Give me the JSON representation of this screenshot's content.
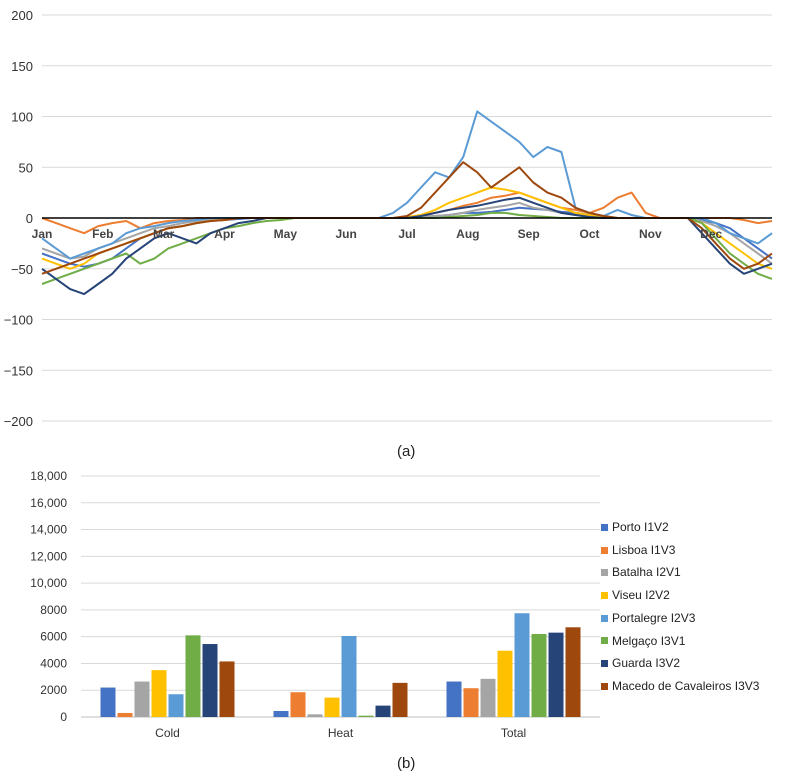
{
  "captions": {
    "a": "(a)",
    "b": "(b)"
  },
  "chart_data": [
    {
      "type": "line",
      "title": "",
      "xlabel": "",
      "ylabel": "",
      "ylim": [
        -200,
        200
      ],
      "yticks": [
        200,
        150,
        100,
        50,
        0,
        -50,
        -100,
        -150,
        -200
      ],
      "ytick_labels": [
        "200",
        "150",
        "100",
        "50",
        "0",
        "−50",
        "−100",
        "−150",
        "−200"
      ],
      "month_labels": [
        "Jan",
        "Feb",
        "Mar",
        "Apr",
        "May",
        "Jun",
        "Jul",
        "Aug",
        "Sep",
        "Oct",
        "Nov",
        "Dec"
      ],
      "grid": true,
      "series": [
        {
          "color": "#4472C4",
          "values": [
            -35,
            -40,
            -45,
            -48,
            -45,
            -40,
            -30,
            -20,
            -15,
            -10,
            -8,
            -5,
            -3,
            -2,
            -1,
            0,
            0,
            0,
            0,
            0,
            0,
            0,
            0,
            0,
            0,
            0,
            0,
            1,
            2,
            3,
            5,
            5,
            6,
            8,
            10,
            9,
            8,
            6,
            5,
            3,
            2,
            0,
            0,
            0,
            0,
            0,
            0,
            -2,
            -5,
            -10,
            -20,
            -30,
            -40
          ]
        },
        {
          "color": "#ED7D31",
          "values": [
            0,
            -5,
            -10,
            -15,
            -8,
            -5,
            -3,
            -10,
            -5,
            -3,
            -2,
            0,
            0,
            0,
            0,
            0,
            0,
            0,
            0,
            0,
            0,
            0,
            0,
            0,
            0,
            0,
            0,
            2,
            5,
            8,
            12,
            15,
            20,
            22,
            25,
            20,
            15,
            10,
            8,
            5,
            10,
            20,
            25,
            5,
            0,
            0,
            0,
            0,
            0,
            0,
            -2,
            -5,
            -3
          ]
        },
        {
          "color": "#A5A5A5",
          "values": [
            -30,
            -35,
            -40,
            -38,
            -30,
            -25,
            -20,
            -15,
            -10,
            -8,
            -5,
            -3,
            -2,
            -1,
            0,
            0,
            0,
            0,
            0,
            0,
            0,
            0,
            0,
            0,
            0,
            0,
            0,
            1,
            2,
            3,
            5,
            8,
            10,
            12,
            15,
            10,
            8,
            5,
            3,
            2,
            0,
            0,
            0,
            0,
            0,
            0,
            0,
            -3,
            -8,
            -15,
            -25,
            -35,
            -45
          ]
        },
        {
          "color": "#FFC000",
          "values": [
            -40,
            -45,
            -50,
            -45,
            -35,
            -30,
            -25,
            -20,
            -15,
            -10,
            -8,
            -5,
            -3,
            -2,
            0,
            0,
            0,
            0,
            0,
            0,
            0,
            0,
            0,
            0,
            0,
            0,
            1,
            3,
            8,
            15,
            20,
            25,
            30,
            28,
            25,
            20,
            15,
            10,
            5,
            3,
            1,
            0,
            0,
            0,
            0,
            0,
            0,
            -5,
            -15,
            -25,
            -35,
            -45,
            -50
          ]
        },
        {
          "color": "#5B9BD5",
          "values": [
            -20,
            -30,
            -40,
            -35,
            -30,
            -25,
            -15,
            -10,
            -8,
            -5,
            -3,
            -2,
            0,
            0,
            0,
            0,
            0,
            0,
            0,
            0,
            0,
            0,
            0,
            0,
            0,
            5,
            15,
            30,
            45,
            40,
            60,
            105,
            95,
            85,
            75,
            60,
            70,
            65,
            10,
            5,
            2,
            8,
            3,
            0,
            0,
            0,
            0,
            0,
            -5,
            -15,
            -20,
            -25,
            -15
          ]
        },
        {
          "color": "#70AD47",
          "values": [
            -65,
            -60,
            -55,
            -50,
            -45,
            -40,
            -35,
            -45,
            -40,
            -30,
            -25,
            -20,
            -15,
            -10,
            -8,
            -5,
            -3,
            -2,
            0,
            0,
            0,
            0,
            0,
            0,
            0,
            0,
            0,
            0,
            0,
            1,
            2,
            3,
            5,
            5,
            3,
            2,
            1,
            0,
            0,
            0,
            0,
            0,
            0,
            0,
            0,
            0,
            0,
            -5,
            -20,
            -35,
            -45,
            -55,
            -60
          ]
        },
        {
          "color": "#264478",
          "values": [
            -50,
            -60,
            -70,
            -75,
            -65,
            -55,
            -40,
            -30,
            -20,
            -15,
            -20,
            -25,
            -15,
            -10,
            -5,
            -3,
            0,
            0,
            0,
            0,
            0,
            0,
            0,
            0,
            0,
            0,
            0,
            2,
            5,
            8,
            10,
            12,
            15,
            18,
            20,
            15,
            10,
            5,
            3,
            1,
            0,
            0,
            0,
            0,
            0,
            0,
            0,
            -15,
            -30,
            -45,
            -55,
            -50,
            -45
          ]
        },
        {
          "color": "#9E480E",
          "values": [
            -55,
            -50,
            -45,
            -40,
            -35,
            -30,
            -25,
            -20,
            -15,
            -10,
            -8,
            -5,
            -3,
            -2,
            0,
            0,
            0,
            0,
            0,
            0,
            0,
            0,
            0,
            0,
            0,
            0,
            2,
            10,
            25,
            40,
            55,
            45,
            30,
            40,
            50,
            35,
            25,
            20,
            10,
            5,
            2,
            0,
            0,
            0,
            0,
            0,
            0,
            -10,
            -25,
            -40,
            -50,
            -45,
            -35
          ]
        }
      ]
    },
    {
      "type": "bar",
      "title": "",
      "xlabel": "",
      "ylabel": "",
      "categories": [
        "Cold",
        "Heat",
        "Total"
      ],
      "ylim": [
        0,
        18000
      ],
      "yticks": [
        0,
        2000,
        4000,
        6000,
        8000,
        10000,
        12000,
        14000,
        16000,
        18000
      ],
      "ytick_labels": [
        "0",
        "2000",
        "4000",
        "6000",
        "8000",
        "10,000",
        "12,000",
        "14,000",
        "16,000",
        "18,000"
      ],
      "grid": true,
      "legend_position": "right",
      "series": [
        {
          "name": "Porto I1V2",
          "color": "#4472C4",
          "values": [
            2200,
            450,
            2650
          ]
        },
        {
          "name": "Lisboa I1V3",
          "color": "#ED7D31",
          "values": [
            300,
            1850,
            2150
          ]
        },
        {
          "name": "Batalha I2V1",
          "color": "#A5A5A5",
          "values": [
            2650,
            200,
            2850
          ]
        },
        {
          "name": "Viseu I2V2",
          "color": "#FFC000",
          "values": [
            3500,
            1450,
            4950
          ]
        },
        {
          "name": "Portalegre I2V3",
          "color": "#5B9BD5",
          "values": [
            1700,
            6050,
            7750
          ]
        },
        {
          "name": "Melgaço I3V1",
          "color": "#70AD47",
          "values": [
            6100,
            100,
            6200
          ]
        },
        {
          "name": "Guarda I3V2",
          "color": "#264478",
          "values": [
            5450,
            850,
            6300
          ]
        },
        {
          "name": "Macedo de Cavaleiros I3V3",
          "color": "#9E480E",
          "values": [
            4150,
            2550,
            6700
          ]
        }
      ]
    }
  ]
}
